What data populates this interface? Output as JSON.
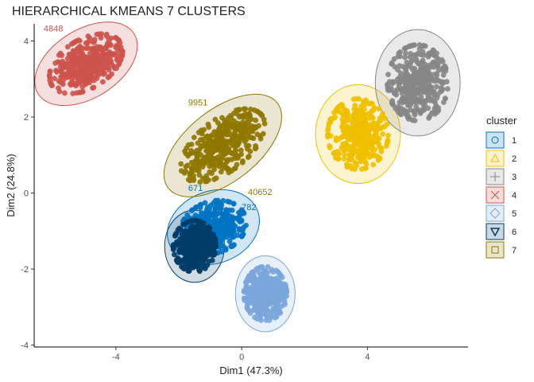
{
  "chart_data": {
    "type": "scatter",
    "title": "HIERARCHICAL KMEANS 7 CLUSTERS",
    "xlabel": "Dim1 (47.3%)",
    "ylabel": "Dim2 (24.8%)",
    "xlim": [
      -6.6,
      7.2
    ],
    "ylim": [
      -4.05,
      4.45
    ],
    "x_ticks": [
      -4,
      0,
      4
    ],
    "y_ticks": [
      -4,
      -2,
      0,
      2,
      4
    ],
    "grid": false,
    "legend_title": "cluster",
    "legend_position": "right",
    "clusters": [
      {
        "name": "1",
        "color": "#0073C2",
        "center": [
          -0.9,
          -0.9
        ],
        "ellipse": {
          "rx": 1.5,
          "ry": 0.95,
          "angle": -20
        },
        "labels": [
          {
            "text": "671",
            "x": -1.7,
            "y": 0.05
          },
          {
            "text": "782",
            "x": 0.0,
            "y": -0.45
          }
        ]
      },
      {
        "name": "2",
        "color": "#EFC000",
        "center": [
          3.7,
          1.55
        ],
        "ellipse": {
          "rx": 1.35,
          "ry": 1.3,
          "angle": 0
        },
        "labels": []
      },
      {
        "name": "3",
        "color": "#868686",
        "center": [
          5.6,
          2.9
        ],
        "ellipse": {
          "rx": 1.35,
          "ry": 1.4,
          "angle": 0
        },
        "labels": []
      },
      {
        "name": "4",
        "color": "#CD534C",
        "center": [
          -4.95,
          3.4
        ],
        "ellipse": {
          "rx": 1.8,
          "ry": 0.9,
          "angle": -32
        },
        "labels": [
          {
            "text": "4848",
            "x": -6.3,
            "y": 4.25
          }
        ]
      },
      {
        "name": "5",
        "color": "#7AA6DC",
        "center": [
          0.75,
          -2.65
        ],
        "ellipse": {
          "rx": 0.95,
          "ry": 1.0,
          "angle": 0
        },
        "labels": []
      },
      {
        "name": "6",
        "color": "#003C67",
        "center": [
          -1.5,
          -1.4
        ],
        "ellipse": {
          "rx": 0.95,
          "ry": 0.95,
          "angle": 0
        },
        "labels": []
      },
      {
        "name": "7",
        "color": "#8F7700",
        "center": [
          -0.6,
          1.25
        ],
        "ellipse": {
          "rx": 2.2,
          "ry": 0.95,
          "angle": -38
        },
        "labels": [
          {
            "text": "9951",
            "x": -1.7,
            "y": 2.3
          },
          {
            "text": "40652",
            "x": 0.2,
            "y": -0.05
          }
        ]
      }
    ]
  }
}
